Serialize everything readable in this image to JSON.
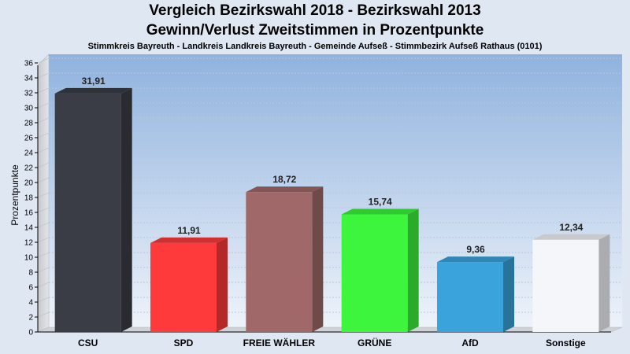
{
  "chart_data": {
    "type": "bar",
    "title": "Vergleich Bezirkswahl 2018 - Bezirkswahl 2013",
    "title2": "Gewinn/Verlust Zweitstimmen in Prozentpunkte",
    "subtitle": "Stimmkreis Bayreuth - Landkreis Landkreis Bayreuth - Gemeinde Aufseß - Stimmbezirk Aufseß Rathaus (0101)",
    "ylabel": "Prozentpunkte",
    "ylim": [
      0,
      36
    ],
    "yticks": [
      "0",
      "2",
      "4",
      "6",
      "8",
      "10",
      "12",
      "14",
      "16",
      "18",
      "20",
      "22",
      "24",
      "26",
      "28",
      "30",
      "32",
      "34",
      "36"
    ],
    "categories": [
      "CSU",
      "SPD",
      "FREIE WÄHLER",
      "GRÜNE",
      "AfD",
      "Sonstige"
    ],
    "values": [
      31.91,
      11.91,
      18.72,
      15.74,
      9.36,
      12.34
    ],
    "value_labels": [
      "31,91",
      "11,91",
      "18,72",
      "15,74",
      "9,36",
      "12,34"
    ],
    "colors": [
      "#3a3d45",
      "#ff3a3a",
      "#a06868",
      "#3cf53c",
      "#3ba3dc",
      "#f4f6fa"
    ],
    "grid": true,
    "legend": "none"
  }
}
